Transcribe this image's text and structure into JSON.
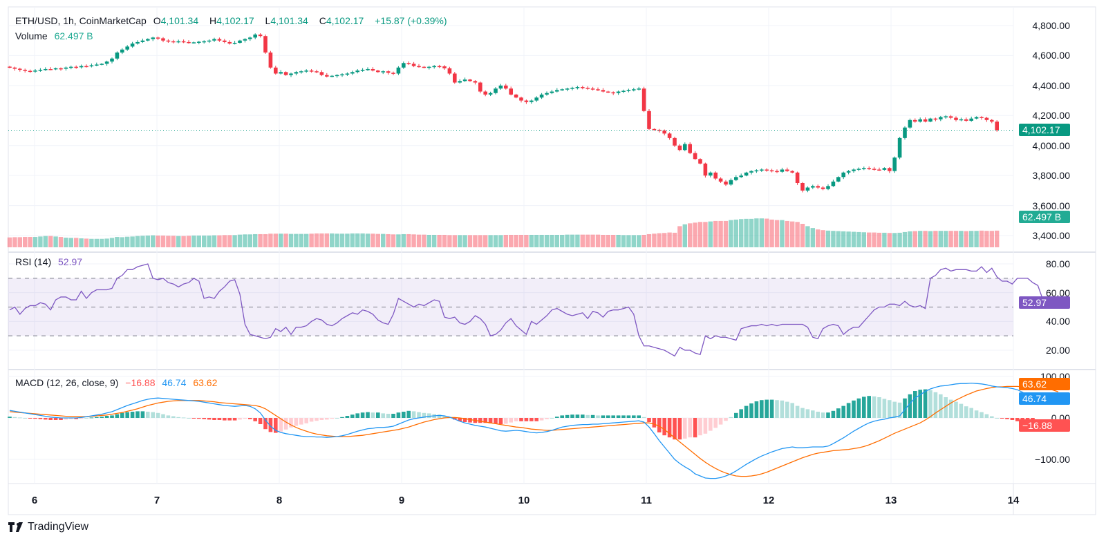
{
  "header": {
    "symbol": "ETH/USD, 1h, CoinMarketCap",
    "open_label": "O",
    "open": "4,101.34",
    "high_label": "H",
    "high": "4,102.17",
    "low_label": "L",
    "low": "4,101.34",
    "close_label": "C",
    "close": "4,102.17",
    "change": "+15.87 (+0.39%)",
    "volume_label": "Volume",
    "volume": "62.497 B"
  },
  "rsi": {
    "label": "RSI (14)",
    "value": "52.97"
  },
  "macd": {
    "label": "MACD (12, 26, close, 9)",
    "hist": "−16.88",
    "macd": "46.74",
    "signal": "63.62"
  },
  "price_axis": [
    "4,800.00",
    "4,600.00",
    "4,400.00",
    "4,200.00",
    "4,000.00",
    "3,800.00",
    "3,600.00",
    "3,400.00"
  ],
  "rsi_axis": [
    "80.00",
    "60.00",
    "40.00",
    "20.00"
  ],
  "macd_axis": [
    "100.00",
    "0.00",
    "−100.00"
  ],
  "tags": {
    "price": "4,102.17",
    "volume": "62.497 B",
    "rsi": "52.97",
    "signal": "63.62",
    "macd": "46.74",
    "hist": "−16.88"
  },
  "x_axis": [
    "6",
    "7",
    "8",
    "9",
    "10",
    "11",
    "12",
    "13",
    "14"
  ],
  "footer": {
    "brand": "TradingView"
  },
  "colors": {
    "up": "#089981",
    "down": "#f23645",
    "rsi": "#7e57c2",
    "macd": "#2196f3",
    "signal": "#ff6d00"
  },
  "chart_data": {
    "type": "candlestick",
    "title": "ETH/USD, 1h, CoinMarketCap",
    "ylim": [
      3350,
      4850
    ],
    "rsi_ylim": [
      10,
      90
    ],
    "macd_ylim": [
      -130,
      110
    ],
    "rsi_bands": [
      70,
      50,
      30
    ],
    "closes": [
      4520,
      4512,
      4505,
      4498,
      4494,
      4500,
      4505,
      4510,
      4508,
      4515,
      4512,
      4520,
      4525,
      4522,
      4530,
      4528,
      4535,
      4540,
      4545,
      4560,
      4580,
      4620,
      4640,
      4660,
      4680,
      4690,
      4700,
      4710,
      4720,
      4715,
      4700,
      4695,
      4690,
      4695,
      4690,
      4685,
      4688,
      4692,
      4695,
      4700,
      4710,
      4700,
      4690,
      4680,
      4685,
      4700,
      4710,
      4720,
      4740,
      4730,
      4620,
      4520,
      4480,
      4490,
      4470,
      4480,
      4490,
      4495,
      4500,
      4495,
      4490,
      4470,
      4460,
      4465,
      4470,
      4475,
      4480,
      4490,
      4500,
      4505,
      4510,
      4500,
      4490,
      4495,
      4485,
      4480,
      4520,
      4550,
      4545,
      4530,
      4525,
      4520,
      4525,
      4530,
      4528,
      4515,
      4480,
      4420,
      4430,
      4440,
      4430,
      4420,
      4360,
      4340,
      4350,
      4380,
      4400,
      4380,
      4340,
      4320,
      4300,
      4290,
      4300,
      4320,
      4340,
      4350,
      4360,
      4370,
      4375,
      4380,
      4385,
      4390,
      4385,
      4380,
      4375,
      4370,
      4360,
      4355,
      4350,
      4360,
      4365,
      4370,
      4375,
      4380,
      4230,
      4110,
      4105,
      4100,
      4080,
      4050,
      4000,
      3970,
      4010,
      3950,
      3910,
      3880,
      3800,
      3820,
      3780,
      3760,
      3740,
      3770,
      3790,
      3800,
      3820,
      3830,
      3835,
      3840,
      3835,
      3830,
      3825,
      3840,
      3830,
      3820,
      3750,
      3700,
      3720,
      3730,
      3720,
      3710,
      3730,
      3760,
      3790,
      3820,
      3830,
      3840,
      3845,
      3850,
      3845,
      3840,
      3838,
      3850,
      3830,
      3920,
      4050,
      4120,
      4170,
      4160,
      4175,
      4160,
      4180,
      4175,
      4190,
      4195,
      4185,
      4170,
      4175,
      4165,
      4180,
      4190,
      4185,
      4170,
      4160,
      4102
    ],
    "volumes": [
      42,
      43,
      43,
      44,
      44,
      44,
      46,
      48,
      48,
      46,
      44,
      41,
      40,
      40,
      38,
      37,
      36,
      36,
      36,
      37,
      40,
      44,
      43,
      45,
      46,
      48,
      49,
      50,
      51,
      50,
      50,
      49,
      49,
      48,
      48,
      49,
      50,
      50,
      50,
      50,
      51,
      51,
      52,
      52,
      52,
      54,
      55,
      55,
      56,
      56,
      56,
      58,
      58,
      58,
      58,
      57,
      57,
      57,
      57,
      58,
      59,
      59,
      59,
      59,
      58,
      58,
      58,
      59,
      59,
      59,
      58,
      58,
      57,
      57,
      56,
      55,
      55,
      56,
      56,
      55,
      54,
      54,
      53,
      53,
      53,
      53,
      52,
      52,
      52,
      52,
      52,
      52,
      52,
      52,
      52,
      52,
      52,
      53,
      53,
      53,
      53,
      53,
      53,
      53,
      53,
      53,
      53,
      53,
      53,
      54,
      54,
      54,
      54,
      54,
      54,
      54,
      53,
      53,
      53,
      53,
      52,
      52,
      52,
      52,
      53,
      56,
      58,
      60,
      61,
      63,
      62,
      90,
      98,
      102,
      105,
      108,
      108,
      110,
      112,
      112,
      112,
      116,
      118,
      120,
      121,
      121,
      123,
      123,
      122,
      118,
      116,
      116,
      112,
      110,
      108,
      100,
      90,
      82,
      76,
      73,
      71,
      70,
      69,
      68,
      67,
      66,
      65,
      64,
      63,
      63,
      62,
      62,
      61,
      61,
      62,
      65,
      68,
      69,
      70,
      70,
      69,
      70,
      70,
      70,
      70,
      70,
      70,
      69,
      70,
      70,
      71,
      70,
      70,
      71,
      71,
      70
    ],
    "rsi": [
      48,
      50,
      45,
      49,
      51,
      51,
      53,
      52,
      48,
      55,
      57,
      57,
      55,
      55,
      61,
      56,
      60,
      62,
      62,
      62,
      63,
      70,
      72,
      76,
      76,
      78,
      79,
      80,
      70,
      69,
      70,
      67,
      66,
      64,
      66,
      67,
      70,
      68,
      56,
      57,
      56,
      61,
      64,
      68,
      69,
      59,
      38,
      31,
      30,
      29,
      28,
      29,
      35,
      33,
      36,
      31,
      36,
      36,
      37,
      40,
      42,
      41,
      38,
      37,
      39,
      42,
      44,
      46,
      45,
      48,
      47,
      45,
      41,
      39,
      38,
      45,
      56,
      54,
      52,
      50,
      52,
      51,
      53,
      55,
      54,
      43,
      42,
      43,
      39,
      38,
      40,
      44,
      42,
      38,
      30,
      31,
      34,
      39,
      42,
      37,
      34,
      31,
      40,
      38,
      41,
      44,
      48,
      49,
      47,
      45,
      44,
      45,
      46,
      42,
      47,
      46,
      43,
      47,
      48,
      48,
      49,
      50,
      45,
      30,
      23,
      23,
      22,
      21,
      20,
      18,
      16,
      22,
      20,
      20,
      18,
      17,
      30,
      28,
      30,
      29,
      29,
      28,
      27,
      35,
      36,
      37,
      37,
      38,
      37,
      38,
      37,
      38,
      38,
      38,
      38,
      38,
      36,
      29,
      28,
      35,
      37,
      38,
      37,
      31,
      34,
      36,
      36,
      40,
      44,
      48,
      50,
      50,
      52,
      52,
      51,
      54,
      51,
      50,
      51,
      49,
      70,
      72,
      76,
      77,
      75,
      76,
      76,
      76,
      75,
      75,
      78,
      74,
      77,
      71,
      68,
      68,
      66,
      70,
      70,
      70,
      67,
      65,
      55,
      53
    ],
    "macd_line": [
      18,
      16,
      14,
      12,
      10,
      8,
      6,
      4,
      2,
      1,
      0,
      0,
      0,
      0,
      1,
      3,
      5,
      7,
      9,
      12,
      15,
      20,
      25,
      30,
      34,
      38,
      42,
      45,
      47,
      48,
      47,
      46,
      45,
      44,
      43,
      42,
      41,
      40,
      38,
      36,
      34,
      32,
      30,
      29,
      28,
      29,
      30,
      28,
      22,
      12,
      -5,
      -20,
      -30,
      -35,
      -38,
      -40,
      -42,
      -44,
      -45,
      -45,
      -46,
      -46,
      -47,
      -46,
      -45,
      -43,
      -40,
      -36,
      -32,
      -29,
      -26,
      -25,
      -23,
      -23,
      -22,
      -20,
      -15,
      -10,
      -5,
      -2,
      0,
      2,
      4,
      5,
      6,
      5,
      2,
      -3,
      -8,
      -12,
      -15,
      -18,
      -20,
      -22,
      -25,
      -28,
      -31,
      -32,
      -31,
      -30,
      -31,
      -33,
      -35,
      -36,
      -35,
      -33,
      -30,
      -26,
      -22,
      -20,
      -18,
      -17,
      -16,
      -16,
      -15,
      -15,
      -14,
      -13,
      -12,
      -11,
      -10,
      -9,
      -8,
      -7,
      -10,
      -22,
      -38,
      -55,
      -70,
      -85,
      -100,
      -110,
      -118,
      -125,
      -135,
      -140,
      -145,
      -146,
      -146,
      -144,
      -140,
      -135,
      -128,
      -120,
      -112,
      -105,
      -98,
      -92,
      -87,
      -82,
      -78,
      -74,
      -72,
      -70,
      -72,
      -72,
      -71,
      -70,
      -70,
      -70,
      -68,
      -62,
      -55,
      -48,
      -40,
      -32,
      -25,
      -18,
      -12,
      -8,
      -5,
      -3,
      0,
      2,
      5,
      20,
      35,
      48,
      56,
      64,
      70,
      74,
      77,
      78,
      80,
      82,
      83,
      83,
      84,
      83,
      82,
      80,
      77,
      75,
      74,
      73,
      71,
      68,
      62,
      55,
      47
    ],
    "signal_line": [
      15,
      14,
      13,
      12,
      11,
      10,
      9,
      8,
      7,
      6,
      5,
      4,
      3,
      3,
      3,
      3,
      4,
      5,
      6,
      7,
      9,
      11,
      13,
      16,
      19,
      22,
      26,
      30,
      33,
      36,
      38,
      40,
      41,
      42,
      42,
      42,
      42,
      42,
      41,
      40,
      39,
      37,
      36,
      35,
      34,
      33,
      32,
      31,
      30,
      27,
      22,
      14,
      6,
      -2,
      -10,
      -17,
      -23,
      -28,
      -32,
      -36,
      -39,
      -41,
      -43,
      -44,
      -45,
      -45,
      -45,
      -44,
      -43,
      -42,
      -40,
      -38,
      -36,
      -34,
      -32,
      -30,
      -28,
      -25,
      -22,
      -18,
      -14,
      -10,
      -7,
      -4,
      -2,
      0,
      1,
      1,
      0,
      -2,
      -4,
      -6,
      -8,
      -10,
      -12,
      -14,
      -16,
      -18,
      -20,
      -22,
      -23,
      -25,
      -27,
      -28,
      -29,
      -30,
      -30,
      -29,
      -28,
      -27,
      -26,
      -25,
      -24,
      -23,
      -22,
      -21,
      -20,
      -19,
      -18,
      -17,
      -16,
      -15,
      -14,
      -13,
      -12,
      -12,
      -15,
      -20,
      -28,
      -38,
      -48,
      -58,
      -68,
      -78,
      -88,
      -98,
      -107,
      -115,
      -122,
      -128,
      -133,
      -137,
      -140,
      -141,
      -141,
      -140,
      -138,
      -135,
      -131,
      -126,
      -121,
      -116,
      -111,
      -106,
      -101,
      -96,
      -92,
      -88,
      -85,
      -83,
      -81,
      -79,
      -78,
      -77,
      -76,
      -74,
      -72,
      -69,
      -65,
      -60,
      -55,
      -49,
      -43,
      -37,
      -32,
      -27,
      -22,
      -17,
      -12,
      -5,
      3,
      12,
      20,
      28,
      36,
      43,
      49,
      55,
      60,
      65,
      68,
      71,
      73,
      75,
      75,
      76,
      76,
      76,
      75,
      75,
      74,
      73,
      72,
      70,
      67,
      63
    ]
  }
}
